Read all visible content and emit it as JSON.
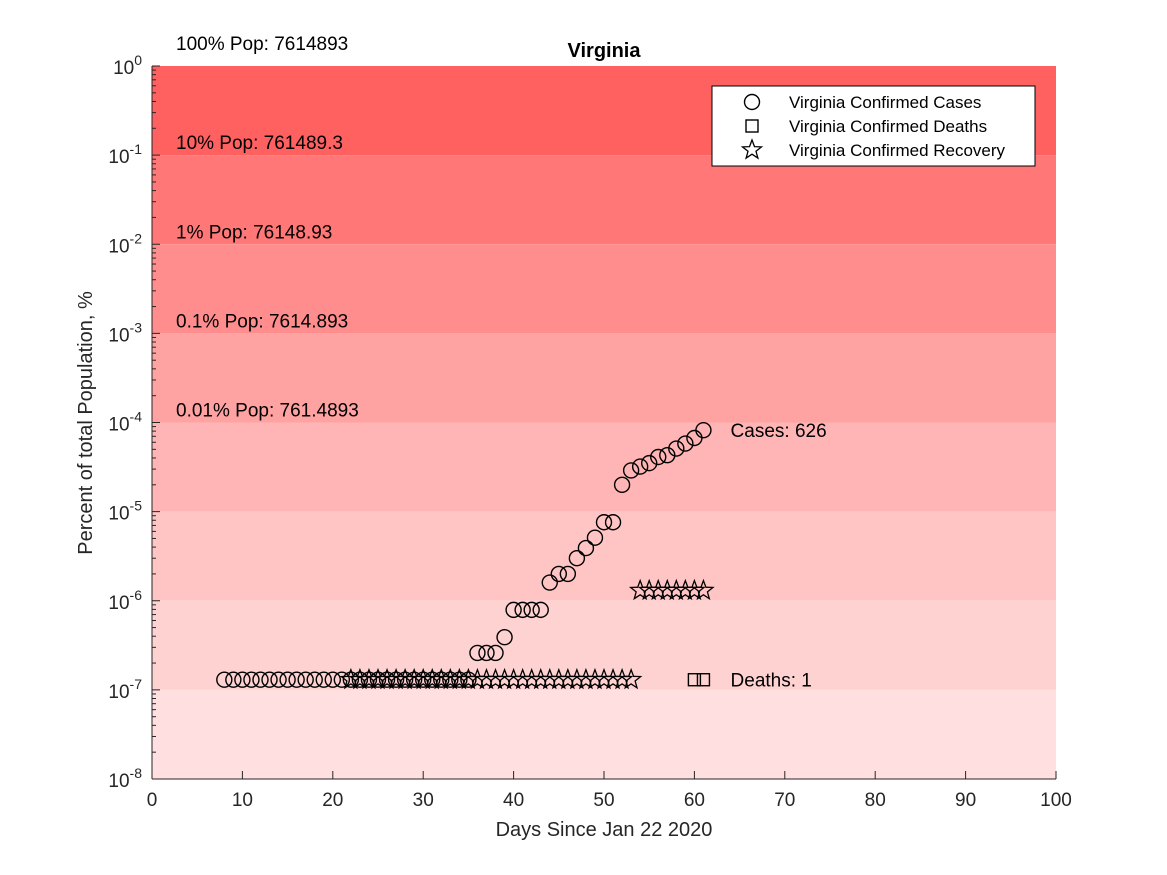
{
  "chart_data": {
    "type": "scatter",
    "title": "Virginia",
    "xlabel": "Days Since Jan 22 2020",
    "ylabel": "Percent of total Population, %",
    "xlim": [
      0,
      100
    ],
    "ylim_log10": [
      -8,
      0
    ],
    "y_scale": "log",
    "x_ticks": [
      "0",
      "10",
      "20",
      "30",
      "40",
      "50",
      "60",
      "70",
      "80",
      "90",
      "100"
    ],
    "y_ticks": [
      {
        "base": "10",
        "exp": "0"
      },
      {
        "base": "10",
        "exp": "-1"
      },
      {
        "base": "10",
        "exp": "-2"
      },
      {
        "base": "10",
        "exp": "-3"
      },
      {
        "base": "10",
        "exp": "-4"
      },
      {
        "base": "10",
        "exp": "-5"
      },
      {
        "base": "10",
        "exp": "-6"
      },
      {
        "base": "10",
        "exp": "-7"
      },
      {
        "base": "10",
        "exp": "-8"
      }
    ],
    "background_bands": [
      {
        "range": [
          0,
          -1
        ],
        "color": "#ff6161",
        "label": "100% Pop: 7614893"
      },
      {
        "range": [
          -1,
          -2
        ],
        "color": "#ff7777",
        "label": "10% Pop: 761489.3"
      },
      {
        "range": [
          -2,
          -3
        ],
        "color": "#ff8d8d",
        "label": "1% Pop: 76148.93"
      },
      {
        "range": [
          -3,
          -4
        ],
        "color": "#ffa2a2",
        "label": "0.1% Pop: 7614.893"
      },
      {
        "range": [
          -4,
          -5
        ],
        "color": "#ffb5b5",
        "label": "0.01% Pop: 761.4893"
      },
      {
        "range": [
          -5,
          -6
        ],
        "color": "#ffc5c5",
        "label": ""
      },
      {
        "range": [
          -6,
          -7
        ],
        "color": "#ffd2d2",
        "label": ""
      },
      {
        "range": [
          -7,
          -8
        ],
        "color": "#ffdfdf",
        "label": ""
      }
    ],
    "legend": {
      "placement": "top-right",
      "entries": [
        {
          "name": "Virginia Confirmed Cases",
          "marker": "circle"
        },
        {
          "name": "Virginia Confirmed Deaths",
          "marker": "square"
        },
        {
          "name": "Virginia Confirmed Recovery",
          "marker": "star"
        }
      ]
    },
    "series": [
      {
        "name": "Virginia Confirmed Cases",
        "marker": "circle",
        "x": [
          8,
          9,
          10,
          11,
          12,
          13,
          14,
          15,
          16,
          17,
          18,
          19,
          20,
          21,
          22,
          23,
          24,
          25,
          26,
          27,
          28,
          29,
          30,
          31,
          32,
          33,
          34,
          35,
          36,
          37,
          38,
          39,
          40,
          41,
          42,
          43,
          44,
          45,
          46,
          47,
          48,
          49,
          50,
          51,
          52,
          53,
          54,
          55,
          56,
          57,
          58,
          59,
          60,
          61
        ],
        "y": [
          1.3e-07,
          1.3e-07,
          1.3e-07,
          1.3e-07,
          1.3e-07,
          1.3e-07,
          1.3e-07,
          1.3e-07,
          1.3e-07,
          1.3e-07,
          1.3e-07,
          1.3e-07,
          1.3e-07,
          1.3e-07,
          1.3e-07,
          1.3e-07,
          1.3e-07,
          1.3e-07,
          1.3e-07,
          1.3e-07,
          1.3e-07,
          1.3e-07,
          1.3e-07,
          1.3e-07,
          1.3e-07,
          1.3e-07,
          1.3e-07,
          1.3e-07,
          2.6e-07,
          2.6e-07,
          2.6e-07,
          3.9e-07,
          7.9e-07,
          7.9e-07,
          7.9e-07,
          7.9e-07,
          1.6e-06,
          2e-06,
          2e-06,
          3e-06,
          3.9e-06,
          5.1e-06,
          7.6e-06,
          7.6e-06,
          2e-05,
          2.9e-05,
          3.2e-05,
          3.5e-05,
          4.1e-05,
          4.3e-05,
          5.1e-05,
          5.8e-05,
          6.7e-05,
          8.2e-05
        ]
      },
      {
        "name": "Virginia Confirmed Deaths",
        "marker": "square",
        "x": [
          60,
          61
        ],
        "y": [
          1.3e-07,
          1.3e-07
        ]
      },
      {
        "name": "Virginia Confirmed Recovery",
        "marker": "star",
        "x": [
          22,
          23,
          24,
          25,
          26,
          27,
          28,
          29,
          30,
          31,
          32,
          33,
          34,
          35,
          36,
          37,
          38,
          39,
          40,
          41,
          42,
          43,
          44,
          45,
          46,
          47,
          48,
          49,
          50,
          51,
          52,
          53,
          54,
          55,
          56,
          57,
          58,
          59,
          60,
          61
        ],
        "y": [
          1.3e-07,
          1.3e-07,
          1.3e-07,
          1.3e-07,
          1.3e-07,
          1.3e-07,
          1.3e-07,
          1.3e-07,
          1.3e-07,
          1.3e-07,
          1.3e-07,
          1.3e-07,
          1.3e-07,
          1.3e-07,
          1.3e-07,
          1.3e-07,
          1.3e-07,
          1.3e-07,
          1.3e-07,
          1.3e-07,
          1.3e-07,
          1.3e-07,
          1.3e-07,
          1.3e-07,
          1.3e-07,
          1.3e-07,
          1.3e-07,
          1.3e-07,
          1.3e-07,
          1.3e-07,
          1.3e-07,
          1.3e-07,
          1.3e-06,
          1.3e-06,
          1.3e-06,
          1.3e-06,
          1.3e-06,
          1.3e-06,
          1.3e-06,
          1.3e-06
        ]
      }
    ],
    "annotations": [
      {
        "text": "Cases: 626",
        "x": 64,
        "y": 8.2e-05
      },
      {
        "text": "Deaths: 1",
        "x": 64,
        "y": 1.3e-07
      }
    ]
  }
}
